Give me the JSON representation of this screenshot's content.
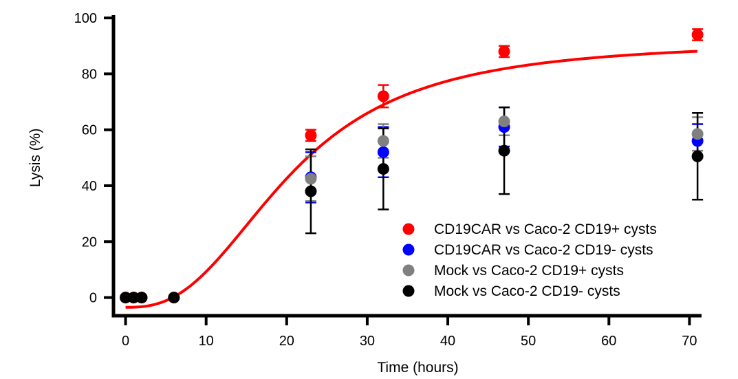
{
  "chart_data": {
    "type": "scatter",
    "title": "",
    "xlabel": "Time (hours)",
    "ylabel": "Lysis (%)",
    "xlim": [
      -1.5,
      71.5
    ],
    "ylim": [
      -6.5,
      101
    ],
    "x_ticks": [
      0,
      10,
      20,
      30,
      40,
      50,
      60,
      70
    ],
    "y_ticks": [
      0,
      20,
      40,
      60,
      80,
      100
    ],
    "grid": false,
    "legend_position": "lower-right",
    "series": [
      {
        "name": "CD19CAR vs Caco-2 CD19+ cysts",
        "color": "#ff0000",
        "x": [
          0,
          1,
          2,
          6,
          23,
          32,
          47,
          71
        ],
        "y": [
          0,
          0,
          0,
          0,
          58,
          72,
          88,
          94
        ],
        "err": [
          0,
          0,
          0,
          0,
          2,
          4,
          2,
          2
        ],
        "fit_curve": {
          "bottom": -3.5,
          "top": 91.7,
          "ec50": 20.5,
          "hill": 2.6
        }
      },
      {
        "name": "CD19CAR vs Caco-2 CD19- cysts",
        "color": "#0000ff",
        "x": [
          23,
          32,
          47,
          71
        ],
        "y": [
          43,
          52,
          61,
          56
        ],
        "err": [
          9,
          9,
          7,
          6
        ]
      },
      {
        "name": "Mock vs Caco-2 CD19+ cysts",
        "color": "#808080",
        "x": [
          23,
          32,
          47,
          71
        ],
        "y": [
          42.5,
          56,
          63,
          58.5
        ],
        "err": [
          8,
          6,
          5,
          6
        ]
      },
      {
        "name": "Mock vs Caco-2 CD19- cysts",
        "color": "#000000",
        "x": [
          0,
          1,
          2,
          6,
          23,
          32,
          47,
          71
        ],
        "y": [
          0,
          0,
          0,
          0,
          38,
          46,
          52.5,
          50.5
        ],
        "err": [
          0,
          0,
          0,
          0,
          15,
          14.5,
          15.5,
          15.5
        ]
      }
    ]
  }
}
